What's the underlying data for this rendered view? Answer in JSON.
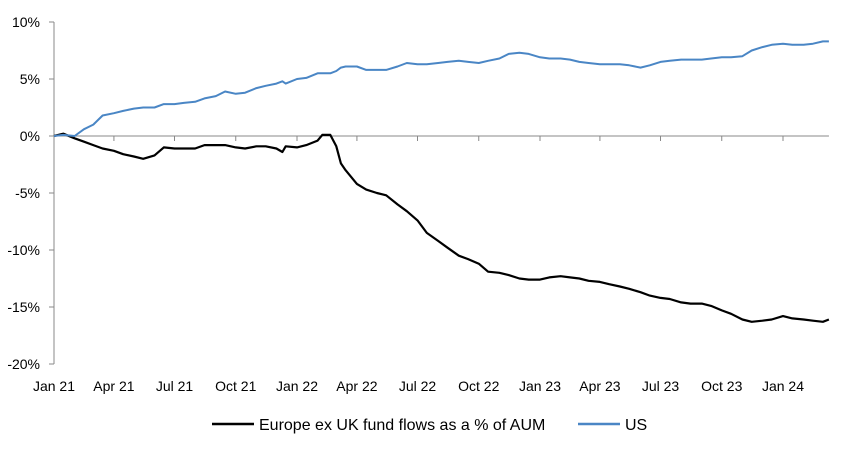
{
  "chart_data": {
    "type": "line",
    "title": "",
    "xlabel": "",
    "ylabel": "",
    "ylim": [
      -20,
      10
    ],
    "xlim": [
      "2021-01-01",
      "2024-03-10"
    ],
    "grid": false,
    "legend_position": "bottom",
    "y_ticks": [
      "10%",
      "5%",
      "0%",
      "-5%",
      "-10%",
      "-15%",
      "-20%"
    ],
    "y_tick_values": [
      10,
      5,
      0,
      -5,
      -10,
      -15,
      -20
    ],
    "x_ticks": [
      "Jan 21",
      "Apr 21",
      "Jul 21",
      "Oct 21",
      "Jan 22",
      "Apr 22",
      "Jul 22",
      "Oct 22",
      "Jan 23",
      "Apr 23",
      "Jul 23",
      "Oct 23",
      "Jan 24"
    ],
    "x_tick_dates": [
      "2021-01-01",
      "2021-04-01",
      "2021-07-01",
      "2021-10-01",
      "2022-01-01",
      "2022-04-01",
      "2022-07-01",
      "2022-10-01",
      "2023-01-01",
      "2023-04-01",
      "2023-07-01",
      "2023-10-01",
      "2024-01-01"
    ],
    "x": [
      "2021-01-01",
      "2021-01-15",
      "2021-02-01",
      "2021-02-15",
      "2021-03-01",
      "2021-03-15",
      "2021-04-01",
      "2021-04-15",
      "2021-05-01",
      "2021-05-15",
      "2021-06-01",
      "2021-06-15",
      "2021-07-01",
      "2021-07-15",
      "2021-08-01",
      "2021-08-15",
      "2021-09-01",
      "2021-09-15",
      "2021-10-01",
      "2021-10-15",
      "2021-11-01",
      "2021-11-15",
      "2021-12-01",
      "2021-12-10",
      "2021-12-15",
      "2022-01-01",
      "2022-01-15",
      "2022-02-01",
      "2022-02-08",
      "2022-02-20",
      "2022-03-01",
      "2022-03-08",
      "2022-03-15",
      "2022-04-01",
      "2022-04-15",
      "2022-05-01",
      "2022-05-15",
      "2022-06-01",
      "2022-06-15",
      "2022-07-01",
      "2022-07-15",
      "2022-08-01",
      "2022-08-15",
      "2022-09-01",
      "2022-09-15",
      "2022-10-01",
      "2022-10-15",
      "2022-11-01",
      "2022-11-15",
      "2022-12-01",
      "2022-12-15",
      "2023-01-01",
      "2023-01-15",
      "2023-02-01",
      "2023-02-15",
      "2023-03-01",
      "2023-03-15",
      "2023-04-01",
      "2023-04-15",
      "2023-05-01",
      "2023-05-15",
      "2023-06-01",
      "2023-06-15",
      "2023-07-01",
      "2023-07-15",
      "2023-08-01",
      "2023-08-15",
      "2023-09-01",
      "2023-09-15",
      "2023-10-01",
      "2023-10-15",
      "2023-11-01",
      "2023-11-15",
      "2023-12-01",
      "2023-12-15",
      "2024-01-01",
      "2024-01-15",
      "2024-02-01",
      "2024-02-15",
      "2024-03-01",
      "2024-03-10"
    ],
    "series": [
      {
        "name": "Europe ex UK fund flows as a % of AUM",
        "color": "#000000",
        "values": [
          0,
          0.2,
          -0.2,
          -0.5,
          -0.8,
          -1.1,
          -1.3,
          -1.6,
          -1.8,
          -2.0,
          -1.7,
          -1.0,
          -1.1,
          -1.1,
          -1.1,
          -0.8,
          -0.8,
          -0.8,
          -1.0,
          -1.1,
          -0.9,
          -0.9,
          -1.1,
          -1.4,
          -0.9,
          -1.0,
          -0.8,
          -0.4,
          0.1,
          0.1,
          -0.9,
          -2.4,
          -3.0,
          -4.2,
          -4.7,
          -5.0,
          -5.2,
          -6.0,
          -6.6,
          -7.4,
          -8.5,
          -9.2,
          -9.8,
          -10.5,
          -10.8,
          -11.2,
          -11.9,
          -12.0,
          -12.2,
          -12.5,
          -12.6,
          -12.6,
          -12.4,
          -12.3,
          -12.4,
          -12.5,
          -12.7,
          -12.8,
          -13.0,
          -13.2,
          -13.4,
          -13.7,
          -14.0,
          -14.2,
          -14.3,
          -14.6,
          -14.7,
          -14.7,
          -14.9,
          -15.3,
          -15.6,
          -16.1,
          -16.3,
          -16.2,
          -16.1,
          -15.8,
          -16.0,
          -16.1,
          -16.2,
          -16.3,
          -16.1
        ]
      },
      {
        "name": "US",
        "color": "#4a86c5",
        "values": [
          0,
          0.1,
          0,
          0.6,
          1.0,
          1.8,
          2.0,
          2.2,
          2.4,
          2.5,
          2.5,
          2.8,
          2.8,
          2.9,
          3.0,
          3.3,
          3.5,
          3.9,
          3.7,
          3.8,
          4.2,
          4.4,
          4.6,
          4.8,
          4.6,
          5.0,
          5.1,
          5.5,
          5.5,
          5.5,
          5.7,
          6.0,
          6.1,
          6.1,
          5.8,
          5.8,
          5.8,
          6.1,
          6.4,
          6.3,
          6.3,
          6.4,
          6.5,
          6.6,
          6.5,
          6.4,
          6.6,
          6.8,
          7.2,
          7.3,
          7.2,
          6.9,
          6.8,
          6.8,
          6.7,
          6.5,
          6.4,
          6.3,
          6.3,
          6.3,
          6.2,
          6.0,
          6.2,
          6.5,
          6.6,
          6.7,
          6.7,
          6.7,
          6.8,
          6.9,
          6.9,
          7.0,
          7.5,
          7.8,
          8.0,
          8.1,
          8.0,
          8.0,
          8.1,
          8.3,
          8.3
        ]
      }
    ]
  }
}
